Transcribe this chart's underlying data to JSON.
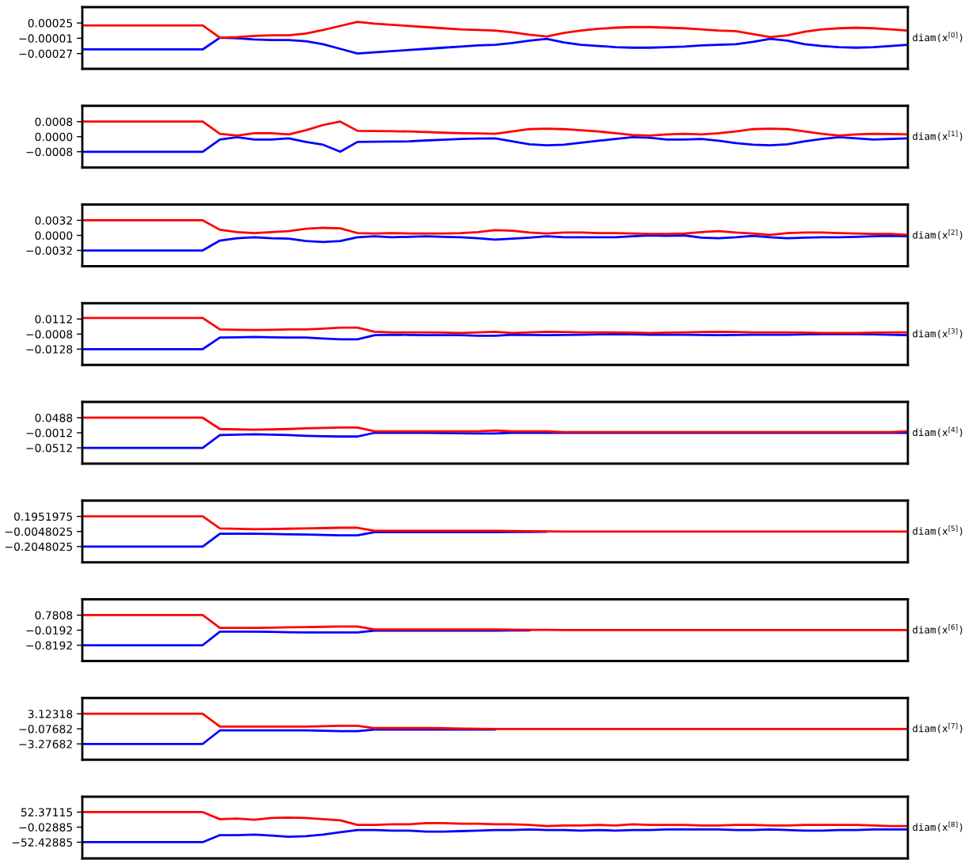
{
  "chart_data": [
    {
      "type": "line",
      "ylabel": "diam(x$^{[0]}$)",
      "categories": [
        null,
        null,
        null,
        null,
        null,
        null,
        null,
        null,
        null,
        null,
        null,
        null,
        null,
        null,
        null,
        null,
        null,
        null,
        null,
        null,
        null,
        null,
        null,
        null,
        null,
        null,
        null,
        null,
        null,
        null,
        null,
        null,
        null,
        null,
        null,
        null,
        null,
        null,
        null,
        null,
        null,
        null,
        null,
        null,
        null,
        null,
        null,
        null,
        null
      ],
      "tick_labels": "y",
      "ylim": [
        -0.00053,
        0.00052
      ],
      "yticks": [
        {
          "value": 0.00025,
          "label": "0.00025"
        },
        {
          "value": -1e-05,
          "label": "−0.00001"
        },
        {
          "value": -0.00027,
          "label": "−0.00027"
        }
      ],
      "series": [
        {
          "color": "#0000ff",
          "values": [
            -0.0002,
            -0.0002,
            -0.0002,
            -0.0002,
            -0.0002,
            -0.0002,
            -0.0002,
            -0.0002,
            0.0,
            -1e-05,
            -3e-05,
            -4e-05,
            -4e-05,
            -6e-05,
            -0.00011,
            -0.00019,
            -0.00027,
            -0.00025,
            -0.00023,
            -0.00021,
            -0.00019,
            -0.00017,
            -0.00015,
            -0.00013,
            -0.00012,
            -9e-05,
            -5e-05,
            -2e-05,
            -8e-05,
            -0.00012,
            -0.00014,
            -0.00016,
            -0.00017,
            -0.00017,
            -0.00016,
            -0.00015,
            -0.00013,
            -0.00012,
            -0.00011,
            -7e-05,
            -2e-05,
            -5e-05,
            -0.00011,
            -0.00014,
            -0.00016,
            -0.00017,
            -0.00016,
            -0.00014,
            -0.00012
          ]
        },
        {
          "color": "#ff0000",
          "values": [
            0.00021,
            0.00021,
            0.00021,
            0.00021,
            0.00021,
            0.00021,
            0.00021,
            0.00021,
            0.0,
            1e-05,
            3e-05,
            4e-05,
            4e-05,
            7e-05,
            0.00013,
            0.0002,
            0.00027,
            0.00024,
            0.00022,
            0.0002,
            0.00018,
            0.00016,
            0.00014,
            0.00013,
            0.00012,
            9e-05,
            5e-05,
            2e-05,
            8e-05,
            0.00012,
            0.00015,
            0.00017,
            0.00018,
            0.00018,
            0.00017,
            0.00016,
            0.00014,
            0.00012,
            0.00011,
            6e-05,
            1e-05,
            4e-05,
            0.0001,
            0.00014,
            0.00016,
            0.00017,
            0.00016,
            0.00014,
            0.00012
          ]
        }
      ]
    },
    {
      "type": "line",
      "ylabel": "diam(x$^{[1]}$)",
      "categories": [
        null,
        null,
        null,
        null,
        null,
        null,
        null,
        null,
        null,
        null,
        null,
        null,
        null,
        null,
        null,
        null,
        null,
        null,
        null,
        null,
        null,
        null,
        null,
        null,
        null,
        null,
        null,
        null,
        null,
        null,
        null,
        null,
        null,
        null,
        null,
        null,
        null,
        null,
        null,
        null,
        null,
        null,
        null,
        null,
        null,
        null,
        null,
        null,
        null
      ],
      "tick_labels": "y",
      "ylim": [
        -0.00164,
        0.00164
      ],
      "yticks": [
        {
          "value": 0.0008,
          "label": "0.0008"
        },
        {
          "value": 0.0,
          "label": "0.0000"
        },
        {
          "value": -0.0008,
          "label": "−0.0008"
        }
      ],
      "series": [
        {
          "color": "#0000ff",
          "values": [
            -0.0008,
            -0.0008,
            -0.0008,
            -0.0008,
            -0.0008,
            -0.0008,
            -0.0008,
            -0.0008,
            -0.00015,
            -3e-05,
            -0.00015,
            -0.00015,
            -9e-05,
            -0.00028,
            -0.00043,
            -0.0008,
            -0.00028,
            -0.00027,
            -0.00026,
            -0.00025,
            -0.0002,
            -0.00016,
            -0.00012,
            -0.0001,
            -9e-05,
            -0.00025,
            -0.0004,
            -0.00046,
            -0.00043,
            -0.00032,
            -0.00022,
            -0.00012,
            -3e-05,
            -6e-05,
            -0.00015,
            -0.00015,
            -0.00012,
            -0.00022,
            -0.00034,
            -0.00043,
            -0.00046,
            -0.0004,
            -0.00025,
            -0.00012,
            -3e-05,
            -9e-05,
            -0.00015,
            -0.00012,
            -9e-05
          ]
        },
        {
          "color": "#ff0000",
          "values": [
            0.0008,
            0.0008,
            0.0008,
            0.0008,
            0.0008,
            0.0008,
            0.0008,
            0.0008,
            0.00015,
            6e-05,
            0.00018,
            0.00018,
            0.00012,
            0.00034,
            0.00062,
            0.0008,
            0.00031,
            0.0003,
            0.00029,
            0.00028,
            0.00025,
            0.00021,
            0.00018,
            0.00017,
            0.00015,
            0.00028,
            0.0004,
            0.00043,
            0.0004,
            0.00034,
            0.00028,
            0.00018,
            9e-05,
            6e-05,
            0.00012,
            0.00015,
            0.00012,
            0.00018,
            0.00028,
            0.0004,
            0.00043,
            0.0004,
            0.00028,
            0.00015,
            6e-05,
            0.00012,
            0.00015,
            0.00014,
            0.00012
          ]
        }
      ]
    },
    {
      "type": "line",
      "ylabel": "diam(x$^{[2]}$)",
      "categories": [
        null,
        null,
        null,
        null,
        null,
        null,
        null,
        null,
        null,
        null,
        null,
        null,
        null,
        null,
        null,
        null,
        null,
        null,
        null,
        null,
        null,
        null,
        null,
        null,
        null,
        null,
        null,
        null,
        null,
        null,
        null,
        null,
        null,
        null,
        null,
        null,
        null,
        null,
        null,
        null,
        null,
        null,
        null,
        null,
        null,
        null,
        null,
        null,
        null
      ],
      "tick_labels": "y",
      "ylim": [
        -0.00656,
        0.00656
      ],
      "yticks": [
        {
          "value": 0.0032,
          "label": "0.0032"
        },
        {
          "value": 0.0,
          "label": "0.0000"
        },
        {
          "value": -0.0032,
          "label": "−0.0032"
        }
      ],
      "series": [
        {
          "color": "#0000ff",
          "values": [
            -0.0032,
            -0.0032,
            -0.0032,
            -0.0032,
            -0.0032,
            -0.0032,
            -0.0032,
            -0.0032,
            -0.0011,
            -0.0006,
            -0.0004,
            -0.0006,
            -0.0007,
            -0.0012,
            -0.0014,
            -0.0012,
            -0.0004,
            -0.0002,
            -0.0004,
            -0.0003,
            -0.0002,
            -0.0003,
            -0.0004,
            -0.0006,
            -0.0009,
            -0.0007,
            -0.0005,
            -0.0002,
            -0.0004,
            -0.0004,
            -0.0004,
            -0.0004,
            -0.0002,
            0.0,
            -0.0001,
            0.0,
            -0.0005,
            -0.0006,
            -0.0004,
            -0.0001,
            -0.0004,
            -0.0006,
            -0.0005,
            -0.0004,
            -0.0004,
            -0.0003,
            -0.0002,
            -0.0001,
            -0.0002
          ]
        },
        {
          "color": "#ff0000",
          "values": [
            0.0032,
            0.0032,
            0.0032,
            0.0032,
            0.0032,
            0.0032,
            0.0032,
            0.0032,
            0.0012,
            0.0007,
            0.0005,
            0.0007,
            0.0009,
            0.0014,
            0.0016,
            0.0015,
            0.0005,
            0.0004,
            0.0005,
            0.0004,
            0.0004,
            0.0004,
            0.0005,
            0.0007,
            0.0011,
            0.001,
            0.0006,
            0.0004,
            0.0006,
            0.0006,
            0.0005,
            0.0005,
            0.0004,
            0.0003,
            0.0003,
            0.0004,
            0.0007,
            0.0009,
            0.0006,
            0.0004,
            0.0001,
            0.0005,
            0.0006,
            0.0006,
            0.0005,
            0.0004,
            0.0003,
            0.0003,
            0.0001
          ]
        }
      ]
    },
    {
      "type": "line",
      "ylabel": "diam(x$^{[3]}$)",
      "categories": [
        null,
        null,
        null,
        null,
        null,
        null,
        null,
        null,
        null,
        null,
        null,
        null,
        null,
        null,
        null,
        null,
        null,
        null,
        null,
        null,
        null,
        null,
        null,
        null,
        null,
        null,
        null,
        null,
        null,
        null,
        null,
        null,
        null,
        null,
        null,
        null,
        null,
        null,
        null,
        null,
        null,
        null,
        null,
        null,
        null,
        null,
        null,
        null,
        null
      ],
      "tick_labels": "y",
      "ylim": [
        -0.0254,
        0.0238
      ],
      "yticks": [
        {
          "value": 0.0112,
          "label": "0.0112"
        },
        {
          "value": -0.0008,
          "label": "−0.0008"
        },
        {
          "value": -0.0128,
          "label": "−0.0128"
        }
      ],
      "series": [
        {
          "color": "#0000ff",
          "values": [
            -0.0128,
            -0.0128,
            -0.0128,
            -0.0128,
            -0.0128,
            -0.0128,
            -0.0128,
            -0.0128,
            -0.0036,
            -0.0034,
            -0.0031,
            -0.0034,
            -0.0036,
            -0.0036,
            -0.0043,
            -0.005,
            -0.005,
            -0.0017,
            -0.0013,
            -0.0015,
            -0.0017,
            -0.0017,
            -0.0017,
            -0.0022,
            -0.0022,
            -0.0013,
            -0.0015,
            -0.0017,
            -0.0015,
            -0.0013,
            -0.0011,
            -0.0008,
            -0.0011,
            -0.0013,
            -0.0013,
            -0.0013,
            -0.0015,
            -0.0017,
            -0.0015,
            -0.0013,
            -0.0013,
            -0.0013,
            -0.0011,
            -0.0008,
            -0.0008,
            -0.0008,
            -0.0011,
            -0.0013,
            -0.0017
          ]
        },
        {
          "color": "#ff0000",
          "values": [
            0.012,
            0.012,
            0.012,
            0.012,
            0.012,
            0.012,
            0.012,
            0.012,
            0.0029,
            0.0026,
            0.0024,
            0.0026,
            0.0029,
            0.0029,
            0.0036,
            0.0043,
            0.0043,
            0.001,
            0.0006,
            0.0006,
            0.0006,
            0.0004,
            0.0001,
            0.0006,
            0.001,
            0.0001,
            0.0006,
            0.001,
            0.0008,
            0.0006,
            0.0006,
            0.0006,
            0.0004,
            0.0001,
            0.0004,
            0.0006,
            0.0008,
            0.001,
            0.0008,
            0.0006,
            0.0006,
            0.0006,
            0.0004,
            0.0001,
            0.0001,
            0.0001,
            0.0004,
            0.0006,
            0.0006
          ]
        }
      ]
    },
    {
      "type": "line",
      "ylabel": "diam(x$^{[4]}$)",
      "categories": [
        null,
        null,
        null,
        null,
        null,
        null,
        null,
        null,
        null,
        null,
        null,
        null,
        null,
        null,
        null,
        null,
        null,
        null,
        null,
        null,
        null,
        null,
        null,
        null,
        null,
        null,
        null,
        null,
        null,
        null,
        null,
        null,
        null,
        null,
        null,
        null,
        null,
        null,
        null,
        null,
        null,
        null,
        null,
        null,
        null,
        null,
        null,
        null,
        null
      ],
      "tick_labels": "y",
      "ylim": [
        -0.1037,
        0.1013
      ],
      "yticks": [
        {
          "value": 0.0488,
          "label": "0.0488"
        },
        {
          "value": -0.0012,
          "label": "−0.0012"
        },
        {
          "value": -0.0512,
          "label": "−0.0512"
        }
      ],
      "series": [
        {
          "color": "#0000ff",
          "values": [
            -0.0512,
            -0.0512,
            -0.0512,
            -0.0512,
            -0.0512,
            -0.0512,
            -0.0512,
            -0.0512,
            -0.0087,
            -0.0075,
            -0.0062,
            -0.0075,
            -0.0087,
            -0.0112,
            -0.0125,
            -0.0137,
            -0.0137,
            -0.0012,
            -0.0012,
            -0.0012,
            -0.0012,
            -0.002,
            -0.0029,
            -0.0037,
            -0.0037,
            -0.0012,
            -0.0012,
            -0.0012,
            -0.0012,
            -0.0012,
            -0.0012,
            -0.0012,
            -0.0012,
            -0.0012,
            -0.0012,
            -0.0012,
            -0.0012,
            -0.0012,
            -0.0012,
            -0.0012,
            -0.0012,
            -0.0012,
            -0.0012,
            -0.0012,
            -0.0012,
            -0.0012,
            -0.0012,
            -0.0012,
            -0.0012
          ]
        },
        {
          "color": "#ff0000",
          "values": [
            0.0488,
            0.0488,
            0.0488,
            0.0488,
            0.0488,
            0.0488,
            0.0488,
            0.0488,
            0.0113,
            0.01,
            0.0088,
            0.01,
            0.0113,
            0.0138,
            0.015,
            0.0163,
            0.0163,
            0.0038,
            0.0038,
            0.0038,
            0.0038,
            0.0038,
            0.0038,
            0.0038,
            0.0063,
            0.0038,
            0.0038,
            0.0038,
            0.0013,
            0.0013,
            0.0013,
            0.0013,
            0.0013,
            0.0013,
            0.0013,
            0.0013,
            0.0013,
            0.0013,
            0.0013,
            0.0013,
            0.0013,
            0.0013,
            0.0013,
            0.0013,
            0.0013,
            0.0013,
            0.0013,
            0.0013,
            0.0038
          ]
        }
      ]
    },
    {
      "type": "line",
      "ylabel": "diam(x$^{[5]}$)",
      "categories": [
        null,
        null,
        null,
        null,
        null,
        null,
        null,
        null,
        null,
        null,
        null,
        null,
        null,
        null,
        null,
        null,
        null,
        null,
        null,
        null,
        null,
        null,
        null,
        null,
        null,
        null,
        null,
        null,
        null,
        null,
        null,
        null,
        null,
        null,
        null,
        null,
        null,
        null,
        null,
        null,
        null,
        null,
        null,
        null,
        null,
        null,
        null,
        null,
        null
      ],
      "tick_labels": "y",
      "ylim": [
        -0.4148,
        0.4052
      ],
      "yticks": [
        {
          "value": 0.1951975,
          "label": "0.1951975"
        },
        {
          "value": -0.0048025,
          "label": "−0.0048025"
        },
        {
          "value": -0.2048025,
          "label": "−0.2048025"
        }
      ],
      "series": [
        {
          "color": "#0000ff",
          "values": [
            -0.2048025,
            -0.2048025,
            -0.2048025,
            -0.2048025,
            -0.2048025,
            -0.2048025,
            -0.2048025,
            -0.2048025,
            -0.035,
            -0.035,
            -0.035,
            -0.038,
            -0.042,
            -0.045,
            -0.05,
            -0.055,
            -0.055,
            -0.015,
            -0.015,
            -0.015,
            -0.015,
            -0.015,
            -0.015,
            -0.015,
            -0.015,
            -0.0125,
            -0.01,
            -0.0075,
            null,
            null,
            null,
            null,
            null,
            null,
            null,
            null,
            null,
            null,
            null,
            null,
            null,
            null,
            null,
            null,
            null,
            null,
            null,
            null,
            null
          ]
        },
        {
          "color": "#ff0000",
          "values": [
            0.1951975,
            0.1951975,
            0.1951975,
            0.1951975,
            0.1951975,
            0.1951975,
            0.1951975,
            0.1951975,
            0.035,
            0.03,
            0.025,
            0.028,
            0.032,
            0.035,
            0.04,
            0.045,
            0.045,
            0.005,
            0.005,
            0.005,
            0.005,
            0.005,
            0.005,
            0.005,
            0.005,
            0.0025,
            0.0,
            -0.0025,
            -0.005,
            -0.005,
            -0.005,
            -0.005,
            -0.005,
            -0.005,
            -0.005,
            -0.005,
            -0.005,
            -0.005,
            -0.005,
            -0.005,
            -0.005,
            -0.005,
            -0.005,
            -0.005,
            -0.005,
            -0.005,
            -0.005,
            -0.005,
            -0.005
          ]
        }
      ]
    },
    {
      "type": "line",
      "ylabel": "diam(x$^{[6]}$)",
      "categories": [
        null,
        null,
        null,
        null,
        null,
        null,
        null,
        null,
        null,
        null,
        null,
        null,
        null,
        null,
        null,
        null,
        null,
        null,
        null,
        null,
        null,
        null,
        null,
        null,
        null,
        null,
        null,
        null,
        null,
        null,
        null,
        null,
        null,
        null,
        null,
        null,
        null,
        null,
        null,
        null,
        null,
        null,
        null,
        null,
        null,
        null,
        null,
        null,
        null
      ],
      "tick_labels": "y",
      "ylim": [
        -1.659,
        1.621
      ],
      "yticks": [
        {
          "value": 0.7808,
          "label": "0.7808"
        },
        {
          "value": -0.0192,
          "label": "−0.0192"
        },
        {
          "value": -0.8192,
          "label": "−0.8192"
        }
      ],
      "series": [
        {
          "color": "#0000ff",
          "values": [
            -0.8192,
            -0.8192,
            -0.8192,
            -0.8192,
            -0.8192,
            -0.8192,
            -0.8192,
            -0.8192,
            -0.1,
            -0.1,
            -0.1,
            -0.11,
            -0.13,
            -0.14,
            -0.14,
            -0.14,
            -0.14,
            -0.04,
            -0.04,
            -0.04,
            -0.04,
            -0.04,
            -0.04,
            -0.04,
            -0.04,
            -0.035,
            -0.035,
            null,
            null,
            null,
            null,
            null,
            null,
            null,
            null,
            null,
            null,
            null,
            null,
            null,
            null,
            null,
            null,
            null,
            null,
            null,
            null,
            null,
            null
          ]
        },
        {
          "color": "#ff0000",
          "values": [
            0.7808,
            0.7808,
            0.7808,
            0.7808,
            0.7808,
            0.7808,
            0.7808,
            0.7808,
            0.1,
            0.1,
            0.1,
            0.11,
            0.13,
            0.14,
            0.16,
            0.18,
            0.18,
            0.02,
            0.02,
            0.02,
            0.02,
            0.02,
            0.02,
            0.02,
            0.02,
            0.01,
            0.0,
            -0.005,
            -0.01,
            -0.01,
            -0.01,
            -0.01,
            -0.01,
            -0.01,
            -0.01,
            -0.01,
            -0.01,
            -0.01,
            -0.01,
            -0.01,
            -0.01,
            -0.01,
            -0.01,
            -0.01,
            -0.01,
            -0.01,
            -0.01,
            -0.01,
            -0.01
          ]
        }
      ]
    },
    {
      "type": "line",
      "ylabel": "diam(x$^{[7]}$)",
      "categories": [
        null,
        null,
        null,
        null,
        null,
        null,
        null,
        null,
        null,
        null,
        null,
        null,
        null,
        null,
        null,
        null,
        null,
        null,
        null,
        null,
        null,
        null,
        null,
        null,
        null,
        null,
        null,
        null,
        null,
        null,
        null,
        null,
        null,
        null,
        null,
        null,
        null,
        null,
        null,
        null,
        null,
        null,
        null,
        null,
        null,
        null,
        null,
        null,
        null
      ],
      "tick_labels": "y",
      "ylim": [
        -6.637,
        6.483
      ],
      "yticks": [
        {
          "value": 3.12318,
          "label": "3.12318"
        },
        {
          "value": -0.07682,
          "label": "−0.07682"
        },
        {
          "value": -3.27682,
          "label": "−3.27682"
        }
      ],
      "series": [
        {
          "color": "#0000ff",
          "values": [
            -3.27682,
            -3.27682,
            -3.27682,
            -3.27682,
            -3.27682,
            -3.27682,
            -3.27682,
            -3.27682,
            -0.41,
            -0.41,
            -0.41,
            -0.41,
            -0.41,
            -0.41,
            -0.49,
            -0.57,
            -0.57,
            -0.24,
            -0.24,
            -0.24,
            -0.24,
            -0.24,
            -0.24,
            -0.24,
            -0.24,
            null,
            null,
            null,
            null,
            null,
            null,
            null,
            null,
            null,
            null,
            null,
            null,
            null,
            null,
            null,
            null,
            null,
            null,
            null,
            null,
            null,
            null,
            null,
            null
          ]
        },
        {
          "color": "#ff0000",
          "values": [
            3.12318,
            3.12318,
            3.12318,
            3.12318,
            3.12318,
            3.12318,
            3.12318,
            3.12318,
            0.42,
            0.42,
            0.42,
            0.42,
            0.42,
            0.42,
            0.5,
            0.58,
            0.58,
            0.09,
            0.09,
            0.09,
            0.09,
            0.05,
            0.0,
            -0.04,
            -0.08,
            -0.08,
            -0.08,
            -0.08,
            -0.08,
            -0.08,
            -0.08,
            -0.08,
            -0.08,
            -0.08,
            -0.08,
            -0.08,
            -0.08,
            -0.08,
            -0.08,
            -0.08,
            -0.08,
            -0.08,
            -0.08,
            -0.08,
            -0.08,
            -0.08,
            -0.08,
            -0.08,
            -0.08
          ]
        }
      ]
    },
    {
      "type": "line",
      "ylabel": "diam(x$^{[8]}$)",
      "categories": [
        null,
        null,
        null,
        null,
        null,
        null,
        null,
        null,
        null,
        null,
        null,
        null,
        null,
        null,
        null,
        null,
        null,
        null,
        null,
        null,
        null,
        null,
        null,
        null,
        null,
        null,
        null,
        null,
        null,
        null,
        null,
        null,
        null,
        null,
        null,
        null,
        null,
        null,
        null,
        null,
        null,
        null,
        null,
        null,
        null,
        null,
        null,
        null,
        null
      ],
      "tick_labels": "y",
      "ylim": [
        -109,
        106
      ],
      "yticks": [
        {
          "value": 52.37115,
          "label": "52.37115"
        },
        {
          "value": -0.02885,
          "label": "−0.02885"
        },
        {
          "value": -52.42885,
          "label": "−52.42885"
        }
      ],
      "series": [
        {
          "color": "#0000ff",
          "values": [
            -52.42885,
            -52.42885,
            -52.42885,
            -52.42885,
            -52.42885,
            -52.42885,
            -52.42885,
            -52.42885,
            -27.8,
            -27.8,
            -25.8,
            -29.7,
            -33.7,
            -31.7,
            -25.8,
            -17.8,
            -9.9,
            -9.9,
            -11.9,
            -11.9,
            -15.9,
            -15.9,
            -13.9,
            -11.9,
            -9.9,
            -9.9,
            -7.9,
            -9.9,
            -9.9,
            -11.9,
            -9.9,
            -11.9,
            -9.9,
            -9.9,
            -7.9,
            -7.9,
            -7.9,
            -7.9,
            -9.9,
            -9.9,
            -7.9,
            -9.9,
            -11.9,
            -11.9,
            -9.9,
            -9.9,
            -7.9,
            -7.9,
            -7.9
          ]
        },
        {
          "color": "#ff0000",
          "values": [
            52.37115,
            52.37115,
            52.37115,
            52.37115,
            52.37115,
            52.37115,
            52.37115,
            52.37115,
            27.7,
            29.7,
            25.7,
            31.7,
            33.6,
            31.7,
            27.7,
            23.7,
            7.9,
            7.9,
            9.9,
            9.9,
            13.8,
            13.8,
            11.9,
            11.9,
            9.9,
            9.9,
            7.9,
            3.9,
            5.9,
            5.9,
            7.9,
            5.9,
            9.9,
            7.9,
            7.9,
            7.9,
            5.9,
            5.9,
            7.9,
            7.9,
            5.9,
            5.9,
            7.9,
            7.9,
            7.9,
            7.9,
            5.9,
            3.9,
            3.9
          ]
        }
      ]
    }
  ]
}
